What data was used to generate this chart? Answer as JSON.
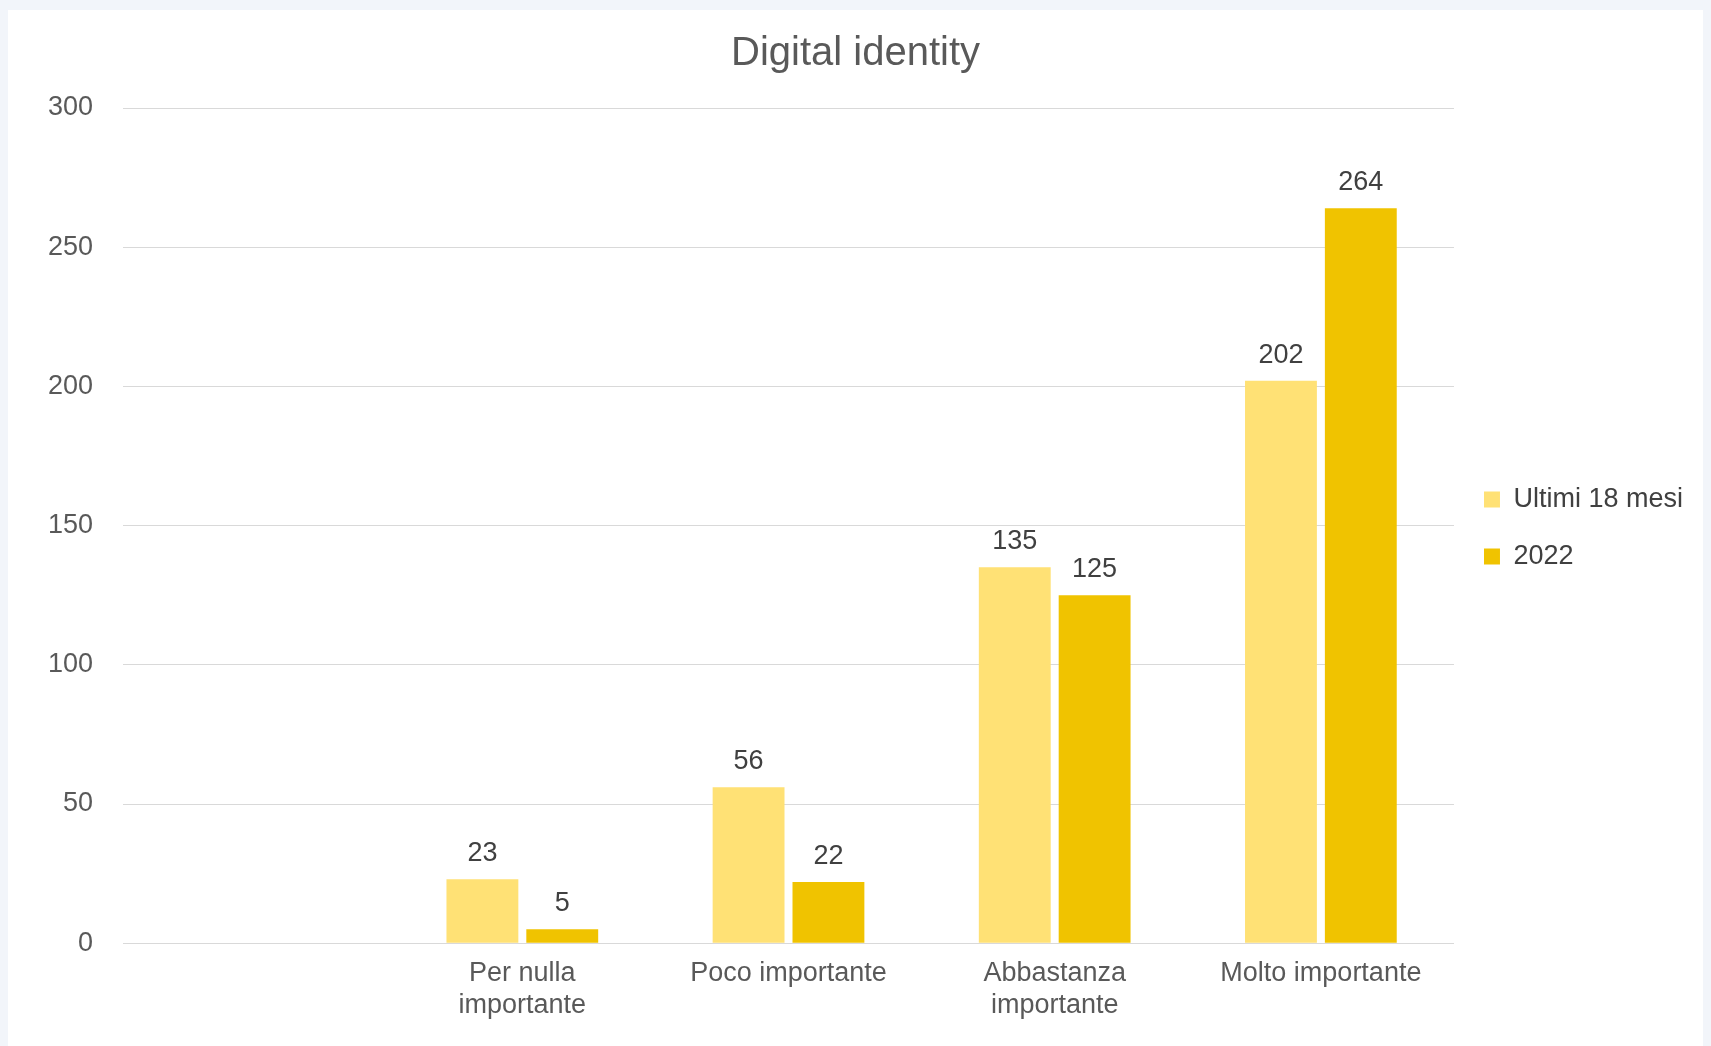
{
  "chart_data": {
    "type": "bar",
    "title": "Digital identity",
    "categories": [
      null,
      "Per nulla importante",
      "Poco importante",
      "Abbastanza importante",
      "Molto importante"
    ],
    "series": [
      {
        "name": "Ultimi 18 mesi",
        "color": "#ffe175",
        "values": [
          null,
          23,
          56,
          135,
          202
        ]
      },
      {
        "name": "2022",
        "color": "#f0c300",
        "values": [
          null,
          5,
          22,
          125,
          264
        ]
      }
    ],
    "ylim": [
      0,
      300
    ],
    "yticks": [
      0,
      50,
      100,
      150,
      200,
      250,
      300
    ],
    "grid": "y",
    "legend": "right",
    "data_labels": true
  }
}
